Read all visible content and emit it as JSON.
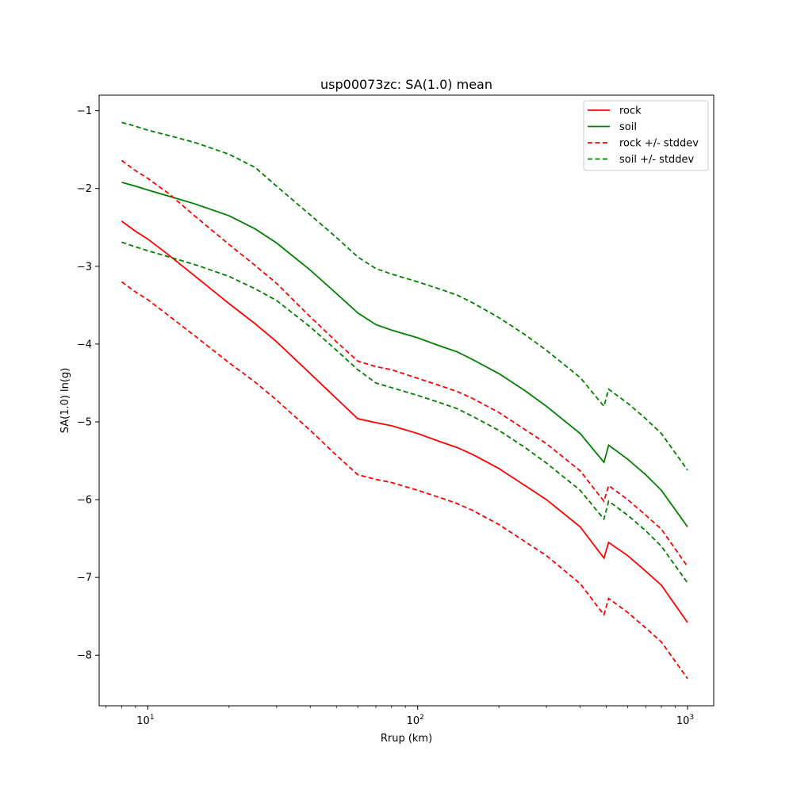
{
  "chart_data": {
    "type": "line",
    "title": "usp00073zc: SA(1.0) mean",
    "xlabel": "Rrup (km)",
    "ylabel": "SA(1.0) ln(g)",
    "xscale": "log",
    "xlim": [
      6.6,
      1250
    ],
    "ylim": [
      -8.65,
      -0.8
    ],
    "x_ticks": [
      {
        "value": 10,
        "base": "10",
        "exp": "1"
      },
      {
        "value": 100,
        "base": "10",
        "exp": "2"
      },
      {
        "value": 1000,
        "base": "10",
        "exp": "3"
      }
    ],
    "y_ticks": [
      {
        "value": -1,
        "label": "−1"
      },
      {
        "value": -2,
        "label": "−2"
      },
      {
        "value": -3,
        "label": "−3"
      },
      {
        "value": -4,
        "label": "−4"
      },
      {
        "value": -5,
        "label": "−5"
      },
      {
        "value": -6,
        "label": "−6"
      },
      {
        "value": -7,
        "label": "−7"
      },
      {
        "value": -8,
        "label": "−8"
      }
    ],
    "grid": false,
    "legend_position": "top-right",
    "x": [
      8,
      9,
      10,
      12,
      15,
      20,
      25,
      30,
      40,
      50,
      60,
      70,
      80,
      100,
      120,
      140,
      160,
      200,
      250,
      300,
      400,
      490,
      510,
      600,
      700,
      800,
      1000
    ],
    "series": [
      {
        "name": "rock",
        "color": "#ff0000",
        "dashed": false,
        "values": [
          -2.42,
          -2.55,
          -2.65,
          -2.86,
          -3.13,
          -3.48,
          -3.74,
          -3.97,
          -4.38,
          -4.7,
          -4.96,
          -5.01,
          -5.05,
          -5.15,
          -5.25,
          -5.33,
          -5.42,
          -5.6,
          -5.82,
          -6.0,
          -6.35,
          -6.75,
          -6.55,
          -6.72,
          -6.92,
          -7.1,
          -7.58
        ]
      },
      {
        "name": "soil",
        "color": "#008000",
        "dashed": false,
        "values": [
          -1.92,
          -1.97,
          -2.02,
          -2.1,
          -2.2,
          -2.35,
          -2.52,
          -2.7,
          -3.05,
          -3.35,
          -3.6,
          -3.75,
          -3.82,
          -3.92,
          -4.02,
          -4.1,
          -4.2,
          -4.38,
          -4.6,
          -4.8,
          -5.15,
          -5.52,
          -5.3,
          -5.48,
          -5.68,
          -5.88,
          -6.35
        ]
      },
      {
        "name": "rock +/- stddev",
        "color": "#ff0000",
        "dashed": true,
        "values": [
          -1.64,
          -1.77,
          -1.87,
          -2.07,
          -2.36,
          -2.72,
          -2.99,
          -3.22,
          -3.65,
          -3.97,
          -4.22,
          -4.29,
          -4.33,
          -4.44,
          -4.53,
          -4.61,
          -4.7,
          -4.88,
          -5.1,
          -5.28,
          -5.63,
          -6.02,
          -5.82,
          -6.0,
          -6.2,
          -6.38,
          -6.86
        ]
      },
      {
        "name": "",
        "color": "#ff0000",
        "dashed": true,
        "values": [
          -3.2,
          -3.33,
          -3.43,
          -3.64,
          -3.9,
          -4.24,
          -4.49,
          -4.72,
          -5.11,
          -5.43,
          -5.68,
          -5.74,
          -5.78,
          -5.88,
          -5.97,
          -6.05,
          -6.14,
          -6.32,
          -6.54,
          -6.72,
          -7.08,
          -7.48,
          -7.27,
          -7.45,
          -7.65,
          -7.83,
          -8.3
        ]
      },
      {
        "name": "soil +/- stddev",
        "color": "#008000",
        "dashed": true,
        "values": [
          -1.15,
          -1.2,
          -1.25,
          -1.32,
          -1.41,
          -1.56,
          -1.73,
          -1.97,
          -2.34,
          -2.63,
          -2.88,
          -3.03,
          -3.1,
          -3.2,
          -3.29,
          -3.37,
          -3.47,
          -3.66,
          -3.88,
          -4.08,
          -4.43,
          -4.8,
          -4.58,
          -4.76,
          -4.96,
          -5.15,
          -5.62
        ]
      },
      {
        "name": "",
        "color": "#008000",
        "dashed": true,
        "values": [
          -2.69,
          -2.75,
          -2.8,
          -2.88,
          -2.98,
          -3.13,
          -3.29,
          -3.44,
          -3.78,
          -4.08,
          -4.33,
          -4.5,
          -4.56,
          -4.66,
          -4.75,
          -4.83,
          -4.93,
          -5.11,
          -5.33,
          -5.53,
          -5.88,
          -6.25,
          -6.02,
          -6.2,
          -6.4,
          -6.6,
          -7.07
        ]
      }
    ]
  }
}
